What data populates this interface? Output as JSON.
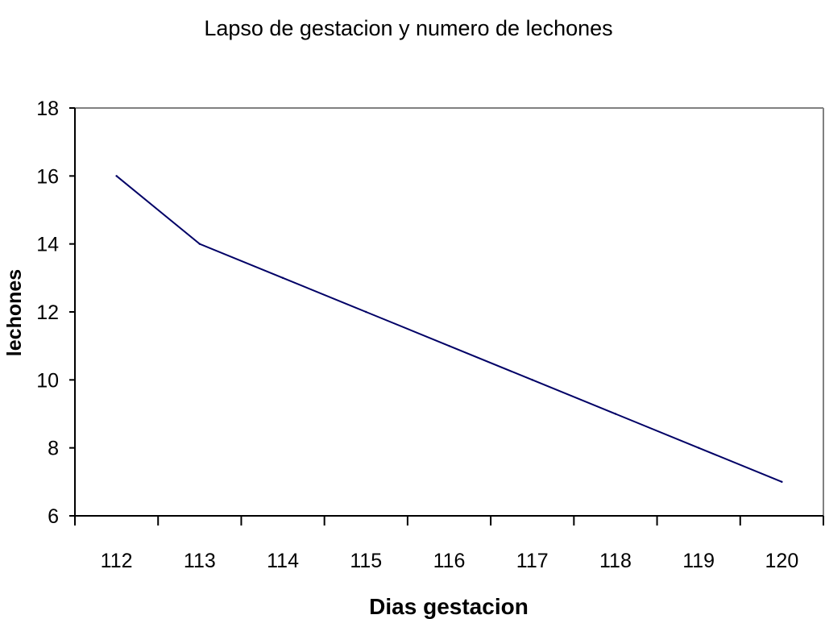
{
  "chart_data": {
    "type": "line",
    "title": "Lapso de gestacion y numero de lechones",
    "xlabel": "Dias gestacion",
    "ylabel": "lechones",
    "categories": [
      "112",
      "113",
      "114",
      "115",
      "116",
      "117",
      "118",
      "119",
      "120"
    ],
    "series": [
      {
        "values": [
          16,
          14,
          13,
          12,
          11,
          10,
          9,
          8,
          7
        ]
      }
    ],
    "ylim": [
      6,
      18
    ],
    "yticks": [
      6,
      8,
      10,
      12,
      14,
      16,
      18
    ],
    "grid": false,
    "legend": "none",
    "colors": {
      "line": "#000066",
      "axis": "#000000",
      "frame": "#808080"
    }
  }
}
